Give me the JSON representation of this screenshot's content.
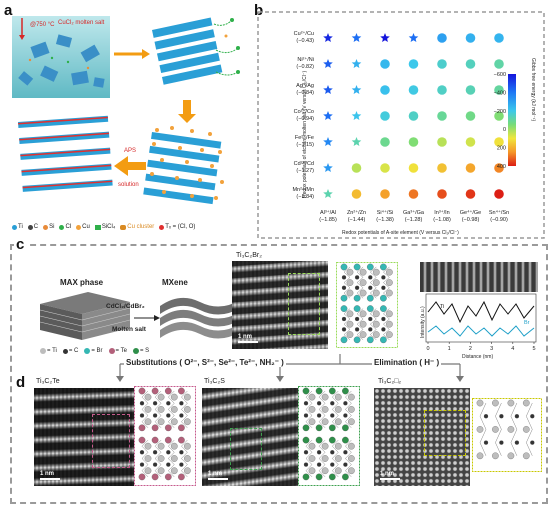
{
  "panels": {
    "a": "a",
    "b": "b",
    "c": "c",
    "d": "d"
  },
  "panel_a": {
    "conditions": "@750 °C",
    "molten_salt": "CuCl₂ molten salt",
    "aps": "APS",
    "solution": "solution",
    "legend": [
      {
        "symbol": "Ti",
        "color": "#2a9fd6"
      },
      {
        "symbol": "C",
        "color": "#444444"
      },
      {
        "symbol": "Si",
        "color": "#e88b3a"
      },
      {
        "symbol": "Cl",
        "color": "#2fb04a"
      },
      {
        "symbol": "Cu",
        "color": "#f2a23c"
      },
      {
        "symbol": "SiCl₄",
        "color": "#2fb04a"
      },
      {
        "symbol": "Cu cluster",
        "color": "#d98a22"
      },
      {
        "symbol": "Tₓ = (Cl, O)",
        "color": "#e03030"
      }
    ]
  },
  "chart_data": {
    "type": "scatter",
    "xlabel": "Redox potentials of A-site element (V versus Cl₂/Cl⁻)",
    "ylabel": "Redox potentials of etchant molten salt (V versus Cl₂/Cl⁻)",
    "x_categories": [
      "Al³⁺/Al",
      "Zn²⁺/Zn",
      "Si⁴⁺/Si",
      "Ga³⁺/Ga",
      "In³⁺/In",
      "Ge⁴⁺/Ge",
      "Sn⁴⁺/Sn"
    ],
    "x_values": [
      "(−1.85)",
      "(−1.44)",
      "(−1.38)",
      "(−1.28)",
      "(−1.08)",
      "(−0.98)",
      "(−0.90)"
    ],
    "y_categories": [
      "Cu²⁺/Cu",
      "Ni²⁺/Ni",
      "Ag⁺/Ag",
      "Co²⁺/Co",
      "Fe²⁺/Fe",
      "Cd²⁺/Cd",
      "Mn²⁺/Mn"
    ],
    "y_values": [
      "(−0.43)",
      "(−0.82)",
      "(−0.84)",
      "(−0.94)",
      "(−1.15)",
      "(−1.27)",
      "(−1.84)"
    ],
    "colorbar": {
      "label": "Gibbs free energy (kJ mol⁻¹)",
      "ticks": [
        "−600",
        "−400",
        "−200",
        "0",
        "200",
        "400"
      ],
      "range": [
        -600,
        400
      ]
    },
    "grid": [
      [
        {
          "m": "star",
          "v": -560
        },
        {
          "m": "star",
          "v": -420
        },
        {
          "m": "star",
          "v": -600
        },
        {
          "m": "star",
          "v": -420
        },
        {
          "m": "circle",
          "v": -300
        },
        {
          "m": "circle",
          "v": -260
        },
        {
          "m": "circle",
          "v": -250
        }
      ],
      [
        {
          "m": "star",
          "v": -450
        },
        {
          "m": "star",
          "v": -260
        },
        {
          "m": "circle",
          "v": -240
        },
        {
          "m": "circle",
          "v": -200
        },
        {
          "m": "circle",
          "v": -160
        },
        {
          "m": "circle",
          "v": -140
        },
        {
          "m": "circle",
          "v": -110
        }
      ],
      [
        {
          "m": "star",
          "v": -460
        },
        {
          "m": "star",
          "v": -260
        },
        {
          "m": "circle",
          "v": -220
        },
        {
          "m": "circle",
          "v": -190
        },
        {
          "m": "circle",
          "v": -150
        },
        {
          "m": "circle",
          "v": -130
        },
        {
          "m": "circle",
          "v": -100
        }
      ],
      [
        {
          "m": "star",
          "v": -420
        },
        {
          "m": "star",
          "v": -210
        },
        {
          "m": "circle",
          "v": -180
        },
        {
          "m": "circle",
          "v": -150
        },
        {
          "m": "circle",
          "v": -90
        },
        {
          "m": "circle",
          "v": -70
        },
        {
          "m": "circle",
          "v": -40
        }
      ],
      [
        {
          "m": "star",
          "v": -360
        },
        {
          "m": "star",
          "v": -120
        },
        {
          "m": "circle",
          "v": -80
        },
        {
          "m": "circle",
          "v": -40
        },
        {
          "m": "circle",
          "v": 30
        },
        {
          "m": "circle",
          "v": 60
        },
        {
          "m": "circle",
          "v": 110
        }
      ],
      [
        {
          "m": "star",
          "v": -320
        },
        {
          "m": "circle",
          "v": 30
        },
        {
          "m": "circle",
          "v": 70
        },
        {
          "m": "circle",
          "v": 110
        },
        {
          "m": "circle",
          "v": 170
        },
        {
          "m": "circle",
          "v": 220
        },
        {
          "m": "circle",
          "v": 270
        }
      ],
      [
        {
          "m": "star",
          "v": -120
        },
        {
          "m": "circle",
          "v": 180
        },
        {
          "m": "circle",
          "v": 230
        },
        {
          "m": "circle",
          "v": 290
        },
        {
          "m": "circle",
          "v": 340
        },
        {
          "m": "circle",
          "v": 370
        },
        {
          "m": "circle",
          "v": 400
        }
      ]
    ]
  },
  "panel_c": {
    "max_phase": "MAX phase",
    "mxene": "MXene",
    "reagent": "CdCl₂/CdBr₂",
    "process": "Molten salt",
    "tem_title": "Ti₃C₂Br₂",
    "scale": "1 nm",
    "legend": [
      "= Ti",
      "= C",
      "= Br",
      "= Te",
      "= S"
    ],
    "profile": {
      "ylabel": "Intensity (a.u.)",
      "xlabel": "Distance (nm)",
      "xticks": [
        "0",
        "1",
        "2",
        "3",
        "4",
        "5"
      ],
      "ti": "Ti",
      "br": "Br"
    },
    "substitutions": "Substitutions ( O²⁻, S²⁻, Se²⁻, Te²⁻, NH₂⁻ )",
    "elimination": "Elimination ( H⁻ )"
  },
  "panel_d": {
    "t1": "Ti₃C₂Te",
    "t2": "Ti₃C₂S",
    "t3": "Ti₃C₂□₂",
    "scale": "1 nm"
  }
}
